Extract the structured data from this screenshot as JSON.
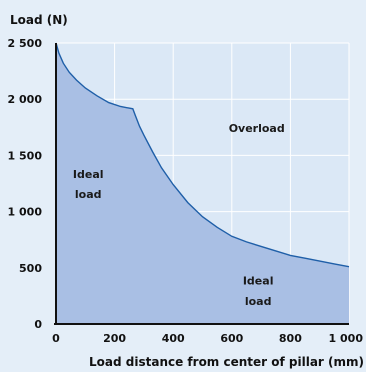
{
  "colors": {
    "page_background": "#e4eef8",
    "plot_background": "#dbe8f6",
    "grid": "#ffffff",
    "ideal_fill": "#a9bfe4",
    "curve": "#1f5fa8",
    "axis": "#111111"
  },
  "chart_data": {
    "type": "area",
    "ylabel": "Load (N)",
    "xlabel": "Load distance from center of pillar (mm)",
    "xlim": [
      0,
      1000
    ],
    "ylim": [
      0,
      2500
    ],
    "x_ticks": [
      0,
      200,
      400,
      600,
      800,
      1000
    ],
    "x_tick_labels": [
      "0",
      "200",
      "400",
      "600",
      "800",
      "1 000"
    ],
    "y_ticks": [
      0,
      500,
      1000,
      1500,
      2000,
      2500
    ],
    "y_tick_labels": [
      "0",
      "500",
      "1 000",
      "1 500",
      "2 000",
      "2 500"
    ],
    "grid": true,
    "series": [
      {
        "x": [
          0,
          10,
          25,
          45,
          70,
          100,
          140,
          180,
          220,
          262,
          270,
          285,
          300,
          330,
          360,
          400,
          450,
          500,
          550,
          600,
          650,
          700,
          750,
          800,
          850,
          900,
          950,
          1000
        ],
        "y": [
          2500,
          2410,
          2320,
          2240,
          2170,
          2100,
          2030,
          1970,
          1935,
          1915,
          1860,
          1760,
          1680,
          1530,
          1390,
          1240,
          1080,
          955,
          860,
          780,
          730,
          690,
          650,
          610,
          585,
          560,
          535,
          510
        ]
      }
    ],
    "annotations": [
      {
        "text": "Overload",
        "x": 685,
        "y": 1710
      },
      {
        "text": "Ideal",
        "x": 110,
        "y": 1300
      },
      {
        "text": "load",
        "x": 110,
        "y": 1120
      },
      {
        "text": "Ideal",
        "x": 690,
        "y": 350
      },
      {
        "text": "load",
        "x": 690,
        "y": 170
      }
    ]
  }
}
